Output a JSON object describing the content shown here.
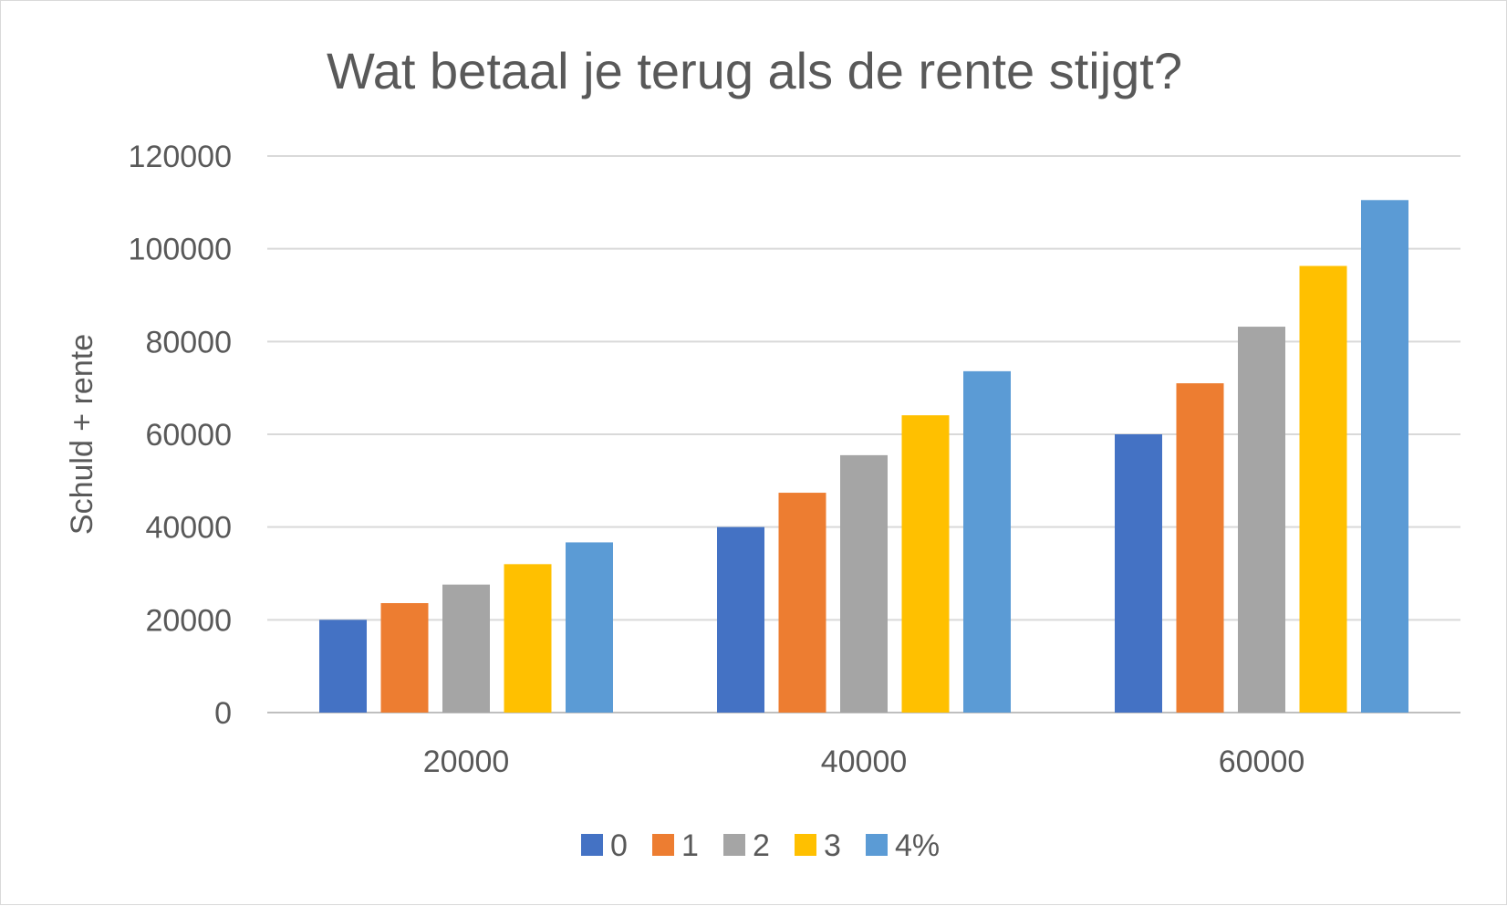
{
  "chart_data": {
    "type": "bar",
    "title": "Wat betaal je terug als de rente stijgt?",
    "xlabel": "",
    "ylabel": "Schuld + rente",
    "categories": [
      "20000",
      "40000",
      "60000"
    ],
    "ylim": [
      0,
      120000
    ],
    "yticks": [
      0,
      20000,
      40000,
      60000,
      80000,
      100000,
      120000
    ],
    "grid": true,
    "legend_position": "bottom",
    "series": [
      {
        "name": "0",
        "color": "#4472c4",
        "values": [
          20000,
          40000,
          60000
        ]
      },
      {
        "name": "1",
        "color": "#ed7d31",
        "values": [
          23600,
          47400,
          71000
        ]
      },
      {
        "name": "2",
        "color": "#a5a5a5",
        "values": [
          27600,
          55500,
          83200
        ]
      },
      {
        "name": "3",
        "color": "#ffc000",
        "values": [
          32000,
          64100,
          96300
        ]
      },
      {
        "name": "4%",
        "color": "#5b9bd5",
        "values": [
          36700,
          73600,
          110500
        ]
      }
    ]
  }
}
